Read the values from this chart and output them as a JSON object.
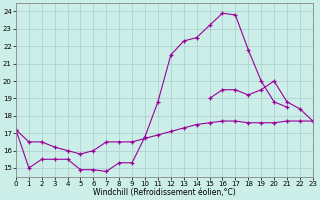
{
  "xlabel": "Windchill (Refroidissement éolien,°C)",
  "bg_color": "#cceee8",
  "grid_color": "#aacccc",
  "line_color": "#990099",
  "xlim": [
    0,
    23
  ],
  "ylim": [
    14.5,
    24.5
  ],
  "yticks": [
    15,
    16,
    17,
    18,
    19,
    20,
    21,
    22,
    23,
    24
  ],
  "xticks": [
    0,
    1,
    2,
    3,
    4,
    5,
    6,
    7,
    8,
    9,
    10,
    11,
    12,
    13,
    14,
    15,
    16,
    17,
    18,
    19,
    20,
    21,
    22,
    23
  ],
  "series1_x": [
    0,
    1,
    2,
    3,
    4,
    5,
    6,
    7,
    8,
    9,
    10,
    11,
    12,
    13,
    14,
    15,
    16,
    17,
    18,
    19,
    20,
    21,
    22,
    23
  ],
  "series1_y": [
    17.2,
    16.5,
    16.5,
    16.2,
    16.0,
    15.8,
    16.0,
    16.5,
    16.5,
    16.5,
    16.7,
    16.9,
    17.1,
    17.3,
    17.5,
    17.6,
    17.7,
    17.7,
    17.6,
    17.6,
    17.6,
    17.7,
    17.7,
    17.7
  ],
  "series2_x": [
    0,
    1,
    2,
    3,
    4,
    5,
    6,
    7,
    8,
    9,
    10,
    11,
    12,
    13,
    14,
    15,
    16,
    17,
    18,
    19,
    20,
    21
  ],
  "series2_y": [
    17.2,
    15.0,
    15.5,
    15.5,
    15.5,
    14.9,
    14.9,
    14.8,
    15.3,
    15.3,
    16.8,
    18.8,
    21.5,
    22.3,
    22.5,
    23.2,
    23.9,
    23.8,
    21.8,
    20.0,
    18.8,
    18.5
  ],
  "series3_x": [
    15,
    16,
    17,
    18,
    19,
    20,
    21,
    22,
    23
  ],
  "series3_y": [
    19.0,
    19.5,
    19.5,
    19.2,
    19.5,
    20.0,
    18.8,
    18.4,
    17.7
  ]
}
